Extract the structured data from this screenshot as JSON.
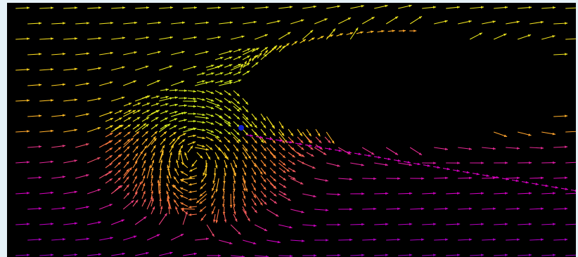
{
  "image": {
    "subject": "vector-field",
    "background_color": "#000000",
    "frame_color": "#e6f2f8",
    "palette": {
      "low": "#7a00c8",
      "low_mid": "#d400c0",
      "mid": "#ff7a3c",
      "high": "#ffd21e",
      "peak": "#d8f020",
      "extreme": "#1020d0"
    }
  }
}
